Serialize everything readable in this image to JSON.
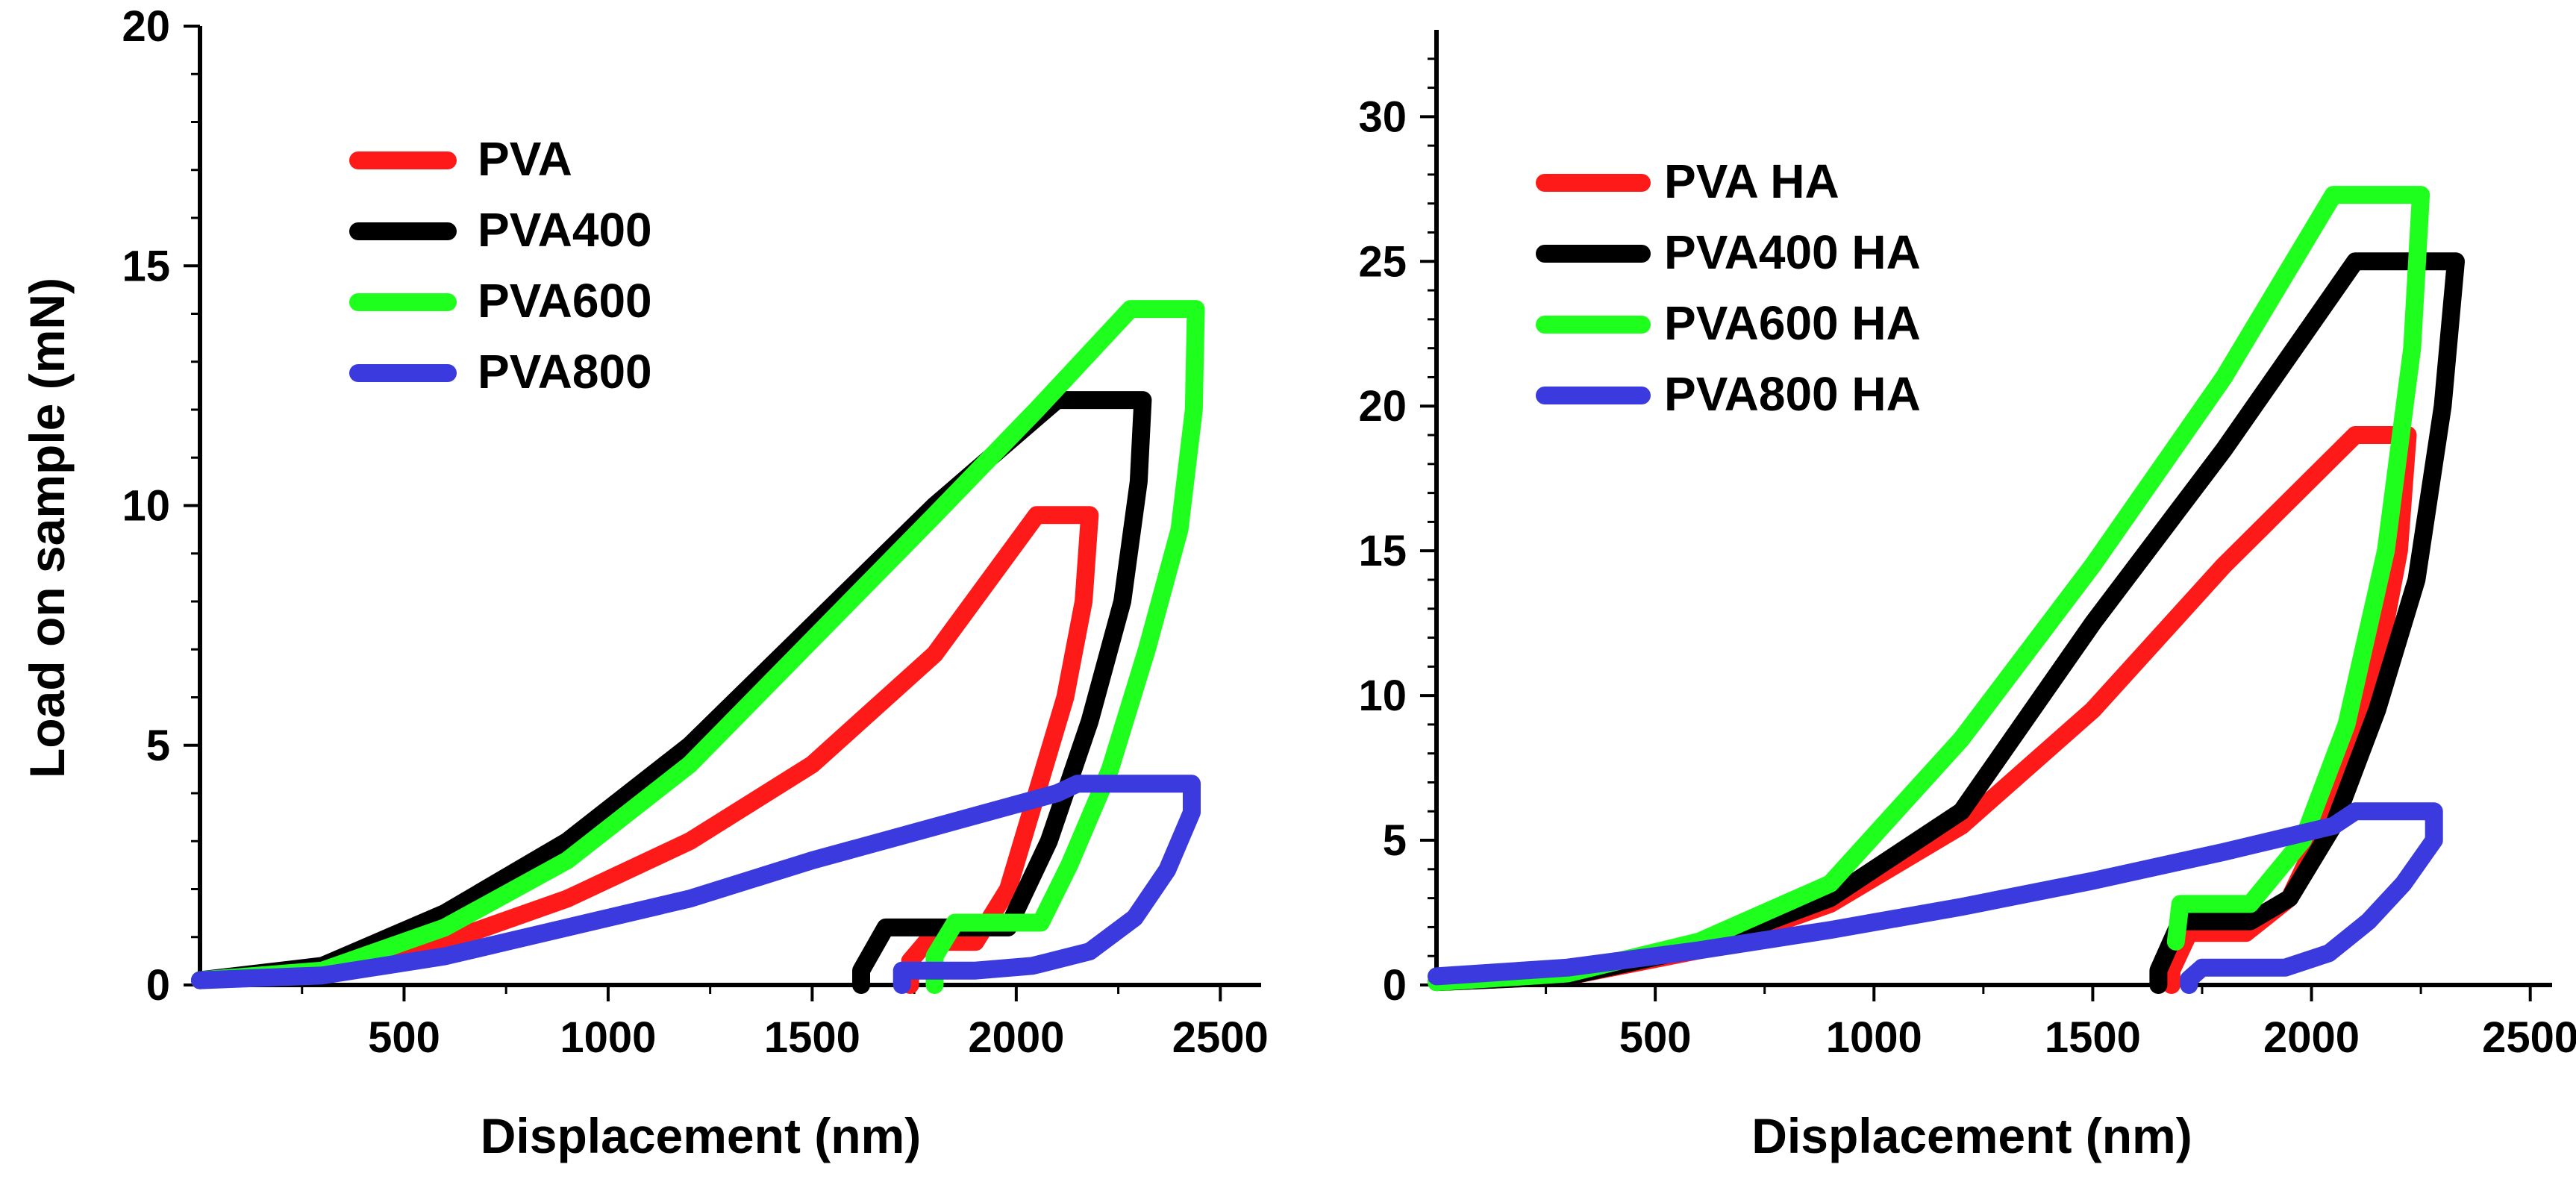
{
  "chart_data": [
    {
      "type": "line",
      "title": "",
      "xlabel": "Displacement (nm)",
      "ylabel": "Load on sample (mN)",
      "xlim": [
        0,
        2600
      ],
      "ylim": [
        0,
        20
      ],
      "xticks": [
        500,
        1000,
        1500,
        2000,
        2500
      ],
      "xtick_labels": [
        "500",
        "1000",
        "1500",
        "2000",
        "2500"
      ],
      "yticks": [
        0,
        5,
        10,
        15,
        20
      ],
      "ytick_labels": [
        "0",
        "5",
        "10",
        "15",
        "20"
      ],
      "legend_position": "top-left",
      "series": [
        {
          "name": "PVA",
          "color": "#ff1a1a",
          "loading": [
            [
              0,
              0.1
            ],
            [
              300,
              0.3
            ],
            [
              600,
              0.9
            ],
            [
              900,
              1.8
            ],
            [
              1200,
              3.0
            ],
            [
              1500,
              4.6
            ],
            [
              1800,
              6.9
            ],
            [
              2050,
              9.8
            ]
          ],
          "hold": [
            [
              2050,
              9.8
            ],
            [
              2180,
              9.8
            ]
          ],
          "unloading": [
            [
              2180,
              9.8
            ],
            [
              2165,
              8
            ],
            [
              2120,
              6
            ],
            [
              2050,
              4
            ],
            [
              1980,
              2
            ],
            [
              1900,
              0.9
            ],
            [
              1780,
              0.9
            ],
            [
              1740,
              0.5
            ],
            [
              1740,
              0
            ]
          ]
        },
        {
          "name": "PVA400",
          "color": "#000000",
          "loading": [
            [
              0,
              0.1
            ],
            [
              300,
              0.4
            ],
            [
              600,
              1.5
            ],
            [
              900,
              3.0
            ],
            [
              1200,
              5.0
            ],
            [
              1500,
              7.5
            ],
            [
              1800,
              10.0
            ],
            [
              2100,
              12.2
            ]
          ],
          "hold": [
            [
              2100,
              12.2
            ],
            [
              2310,
              12.2
            ]
          ],
          "unloading": [
            [
              2310,
              12.2
            ],
            [
              2300,
              10.5
            ],
            [
              2260,
              8
            ],
            [
              2180,
              5.5
            ],
            [
              2080,
              3
            ],
            [
              1980,
              1.2
            ],
            [
              1680,
              1.2
            ],
            [
              1620,
              0.3
            ],
            [
              1620,
              0
            ]
          ]
        },
        {
          "name": "PVA600",
          "color": "#1eff1e",
          "loading": [
            [
              0,
              0.1
            ],
            [
              300,
              0.3
            ],
            [
              600,
              1.2
            ],
            [
              900,
              2.6
            ],
            [
              1200,
              4.6
            ],
            [
              1500,
              7.2
            ],
            [
              1800,
              9.8
            ],
            [
              2050,
              12.0
            ],
            [
              2280,
              14.1
            ]
          ],
          "hold": [
            [
              2280,
              14.1
            ],
            [
              2440,
              14.1
            ]
          ],
          "unloading": [
            [
              2440,
              14.1
            ],
            [
              2435,
              12
            ],
            [
              2400,
              9.5
            ],
            [
              2320,
              7
            ],
            [
              2230,
              4.5
            ],
            [
              2130,
              2.5
            ],
            [
              2060,
              1.3
            ],
            [
              1850,
              1.3
            ],
            [
              1800,
              0.6
            ],
            [
              1800,
              0
            ]
          ]
        },
        {
          "name": "PVA800",
          "color": "#3a3adf",
          "loading": [
            [
              0,
              0.1
            ],
            [
              300,
              0.2
            ],
            [
              600,
              0.6
            ],
            [
              900,
              1.2
            ],
            [
              1200,
              1.8
            ],
            [
              1500,
              2.6
            ],
            [
              1800,
              3.3
            ],
            [
              2100,
              4.0
            ],
            [
              2150,
              4.2
            ]
          ],
          "hold": [
            [
              2150,
              4.2
            ],
            [
              2430,
              4.2
            ]
          ],
          "unloading": [
            [
              2430,
              4.2
            ],
            [
              2430,
              3.6
            ],
            [
              2370,
              2.4
            ],
            [
              2290,
              1.4
            ],
            [
              2180,
              0.7
            ],
            [
              2040,
              0.4
            ],
            [
              1900,
              0.3
            ],
            [
              1720,
              0.3
            ],
            [
              1720,
              0
            ]
          ]
        }
      ]
    },
    {
      "type": "line",
      "title": "",
      "xlabel": "Displacement (nm)",
      "ylabel": "",
      "xlim": [
        0,
        2550
      ],
      "ylim": [
        0,
        33
      ],
      "xticks": [
        500,
        1000,
        1500,
        2000,
        2500
      ],
      "xtick_labels": [
        "500",
        "1000",
        "1500",
        "2000",
        "2500"
      ],
      "yticks": [
        0,
        5,
        10,
        15,
        20,
        25,
        30
      ],
      "ytick_labels": [
        "0",
        "5",
        "10",
        "15",
        "20",
        "25",
        "30"
      ],
      "legend_position": "top-left",
      "series": [
        {
          "name": "PVA HA",
          "color": "#ff1a1a",
          "loading": [
            [
              0,
              0.1
            ],
            [
              300,
              0.3
            ],
            [
              600,
              1.2
            ],
            [
              900,
              2.8
            ],
            [
              1200,
              5.5
            ],
            [
              1500,
              9.5
            ],
            [
              1800,
              14.5
            ],
            [
              2100,
              19.0
            ]
          ],
          "hold": [
            [
              2100,
              19.0
            ],
            [
              2220,
              19.0
            ]
          ],
          "unloading": [
            [
              2220,
              19.0
            ],
            [
              2200,
              15
            ],
            [
              2150,
              11
            ],
            [
              2060,
              6.5
            ],
            [
              1950,
              3.0
            ],
            [
              1850,
              1.8
            ],
            [
              1720,
              1.8
            ],
            [
              1680,
              0.5
            ],
            [
              1680,
              0
            ]
          ]
        },
        {
          "name": "PVA400 HA",
          "color": "#000000",
          "loading": [
            [
              0,
              0.1
            ],
            [
              300,
              0.3
            ],
            [
              600,
              1.3
            ],
            [
              900,
              3.0
            ],
            [
              1200,
              6.0
            ],
            [
              1500,
              12.5
            ],
            [
              1800,
              18.5
            ],
            [
              2100,
              25.0
            ]
          ],
          "hold": [
            [
              2100,
              25.0
            ],
            [
              2330,
              25.0
            ]
          ],
          "unloading": [
            [
              2330,
              25.0
            ],
            [
              2300,
              20
            ],
            [
              2240,
              14
            ],
            [
              2150,
              9.5
            ],
            [
              2050,
              5.5
            ],
            [
              1950,
              3.0
            ],
            [
              1860,
              2.2
            ],
            [
              1700,
              2.2
            ],
            [
              1650,
              0.5
            ],
            [
              1650,
              0
            ]
          ]
        },
        {
          "name": "PVA600 HA",
          "color": "#1eff1e",
          "loading": [
            [
              0,
              0.1
            ],
            [
              300,
              0.4
            ],
            [
              600,
              1.5
            ],
            [
              900,
              3.5
            ],
            [
              1200,
              8.5
            ],
            [
              1500,
              14.5
            ],
            [
              1800,
              21.0
            ],
            [
              2050,
              27.3
            ]
          ],
          "hold": [
            [
              2050,
              27.3
            ],
            [
              2250,
              27.3
            ]
          ],
          "unloading": [
            [
              2250,
              27.3
            ],
            [
              2230,
              22
            ],
            [
              2170,
              15
            ],
            [
              2080,
              9
            ],
            [
              1980,
              5
            ],
            [
              1860,
              2.8
            ],
            [
              1700,
              2.8
            ],
            [
              1690,
              1.5
            ]
          ]
        },
        {
          "name": "PVA800 HA",
          "color": "#3a3adf",
          "loading": [
            [
              0,
              0.3
            ],
            [
              300,
              0.6
            ],
            [
              600,
              1.2
            ],
            [
              900,
              1.9
            ],
            [
              1200,
              2.7
            ],
            [
              1500,
              3.6
            ],
            [
              1800,
              4.6
            ],
            [
              2050,
              5.5
            ],
            [
              2100,
              6.0
            ]
          ],
          "hold": [
            [
              2100,
              6.0
            ],
            [
              2280,
              6.0
            ]
          ],
          "unloading": [
            [
              2280,
              6.0
            ],
            [
              2280,
              5.0
            ],
            [
              2210,
              3.5
            ],
            [
              2130,
              2.2
            ],
            [
              2040,
              1.1
            ],
            [
              1940,
              0.6
            ],
            [
              1750,
              0.6
            ],
            [
              1720,
              0.2
            ],
            [
              1720,
              0
            ]
          ]
        }
      ]
    }
  ]
}
